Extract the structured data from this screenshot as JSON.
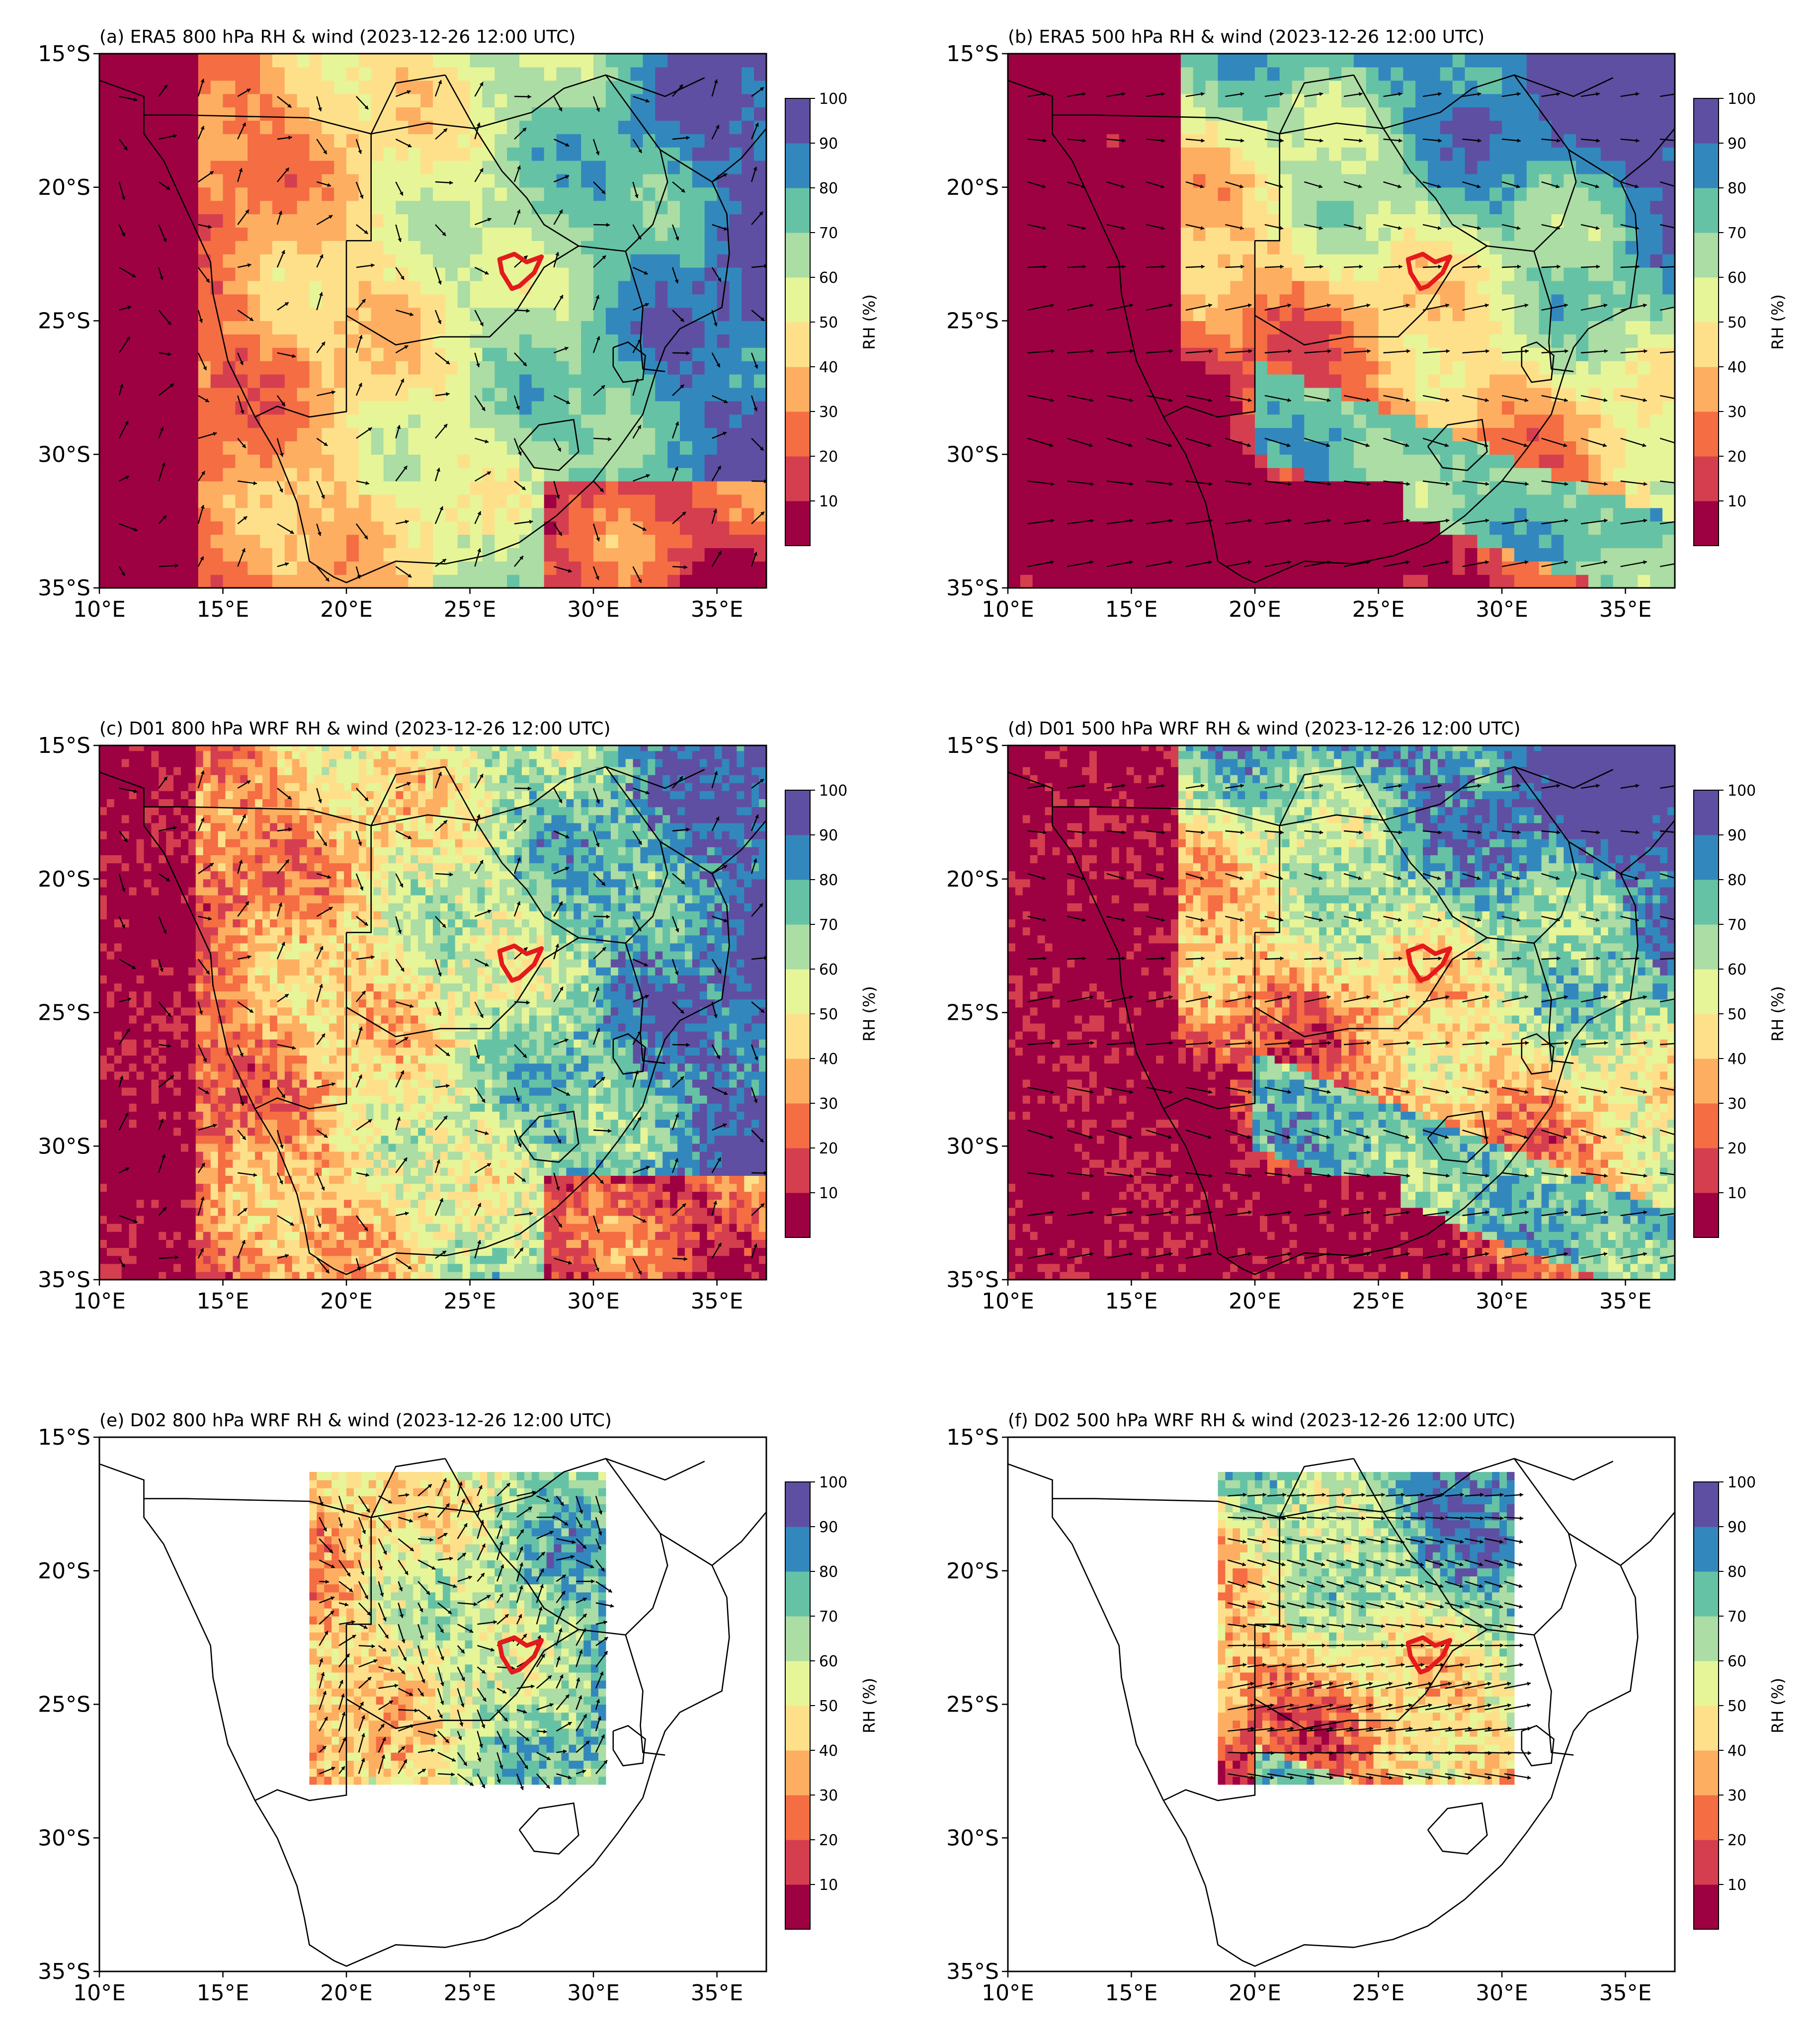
{
  "figure": {
    "colormap": [
      "#9e0142",
      "#d53e4f",
      "#f46d43",
      "#fdae61",
      "#fee08b",
      "#e6f598",
      "#abdda4",
      "#66c2a5",
      "#3288bd",
      "#5e4fa2"
    ],
    "country_outline_color": "#000000",
    "study_area_color": "#e41a1c"
  },
  "chart_data": [
    {
      "id": "a",
      "type": "heatmap",
      "title": "(a) ERA5 800 hPa RH & wind (2023-12-26 12:00 UTC)",
      "dataset": "ERA5",
      "level": "800 hPa",
      "x_ticks": [
        "10°E",
        "15°E",
        "20°E",
        "25°E",
        "30°E",
        "35°E"
      ],
      "y_ticks": [
        "15°S",
        "20°S",
        "25°S",
        "30°S",
        "35°S"
      ],
      "xlim": [
        10,
        37
      ],
      "ylim": [
        -35,
        -15
      ],
      "colorbar": {
        "label": "RH (%)",
        "ticks": [
          "100",
          "90",
          "80",
          "70",
          "60",
          "50",
          "40",
          "30",
          "20",
          "10"
        ],
        "range": [
          10,
          100
        ],
        "levels": 10
      },
      "grid": false
    },
    {
      "id": "b",
      "type": "heatmap",
      "title": "(b) ERA5 500 hPa RH & wind (2023-12-26 12:00 UTC)",
      "dataset": "ERA5",
      "level": "500 hPa",
      "x_ticks": [
        "10°E",
        "15°E",
        "20°E",
        "25°E",
        "30°E",
        "35°E"
      ],
      "y_ticks": [
        "15°S",
        "20°S",
        "25°S",
        "30°S",
        "35°S"
      ],
      "xlim": [
        10,
        37
      ],
      "ylim": [
        -35,
        -15
      ],
      "colorbar": {
        "label": "RH (%)",
        "ticks": [
          "100",
          "90",
          "80",
          "70",
          "60",
          "50",
          "40",
          "30",
          "20",
          "10"
        ],
        "range": [
          10,
          100
        ],
        "levels": 10
      },
      "grid": false
    },
    {
      "id": "c",
      "type": "heatmap",
      "title": "(c) D01 800 hPa WRF RH & wind (2023-12-26 12:00 UTC)",
      "dataset": "D01 WRF",
      "level": "800 hPa",
      "x_ticks": [
        "10°E",
        "15°E",
        "20°E",
        "25°E",
        "30°E",
        "35°E"
      ],
      "y_ticks": [
        "15°S",
        "20°S",
        "25°S",
        "30°S",
        "35°S"
      ],
      "xlim": [
        10,
        37
      ],
      "ylim": [
        -35,
        -15
      ],
      "colorbar": {
        "label": "RH (%)",
        "ticks": [
          "100",
          "90",
          "80",
          "70",
          "60",
          "50",
          "40",
          "30",
          "20",
          "10"
        ],
        "range": [
          10,
          100
        ],
        "levels": 10
      },
      "grid": false
    },
    {
      "id": "d",
      "type": "heatmap",
      "title": "(d) D01 500 hPa WRF RH & wind (2023-12-26 12:00 UTC)",
      "dataset": "D01 WRF",
      "level": "500 hPa",
      "x_ticks": [
        "10°E",
        "15°E",
        "20°E",
        "25°E",
        "30°E",
        "35°E"
      ],
      "y_ticks": [
        "15°S",
        "20°S",
        "25°S",
        "30°S",
        "35°S"
      ],
      "xlim": [
        10,
        37
      ],
      "ylim": [
        -35,
        -15
      ],
      "colorbar": {
        "label": "RH (%)",
        "ticks": [
          "100",
          "90",
          "80",
          "70",
          "60",
          "50",
          "40",
          "30",
          "20",
          "10"
        ],
        "range": [
          10,
          100
        ],
        "levels": 10
      },
      "grid": false
    },
    {
      "id": "e",
      "type": "heatmap",
      "title": "(e) D02 800 hPa WRF RH & wind (2023-12-26 12:00 UTC)",
      "dataset": "D02 WRF",
      "level": "800 hPa",
      "x_ticks": [
        "10°E",
        "15°E",
        "20°E",
        "25°E",
        "30°E",
        "35°E"
      ],
      "y_ticks": [
        "15°S",
        "20°S",
        "25°S",
        "30°S",
        "35°S"
      ],
      "xlim": [
        10,
        37
      ],
      "ylim": [
        -35,
        -15
      ],
      "data_extent_lon": [
        18.5,
        30.5
      ],
      "data_extent_lat": [
        -28.0,
        -16.5
      ],
      "colorbar": {
        "label": "RH (%)",
        "ticks": [
          "100",
          "90",
          "80",
          "70",
          "60",
          "50",
          "40",
          "30",
          "20",
          "10"
        ],
        "range": [
          10,
          100
        ],
        "levels": 10
      },
      "grid": false
    },
    {
      "id": "f",
      "type": "heatmap",
      "title": "(f) D02 500 hPa WRF RH & wind (2023-12-26 12:00 UTC)",
      "dataset": "D02 WRF",
      "level": "500 hPa",
      "x_ticks": [
        "10°E",
        "15°E",
        "20°E",
        "25°E",
        "30°E",
        "35°E"
      ],
      "y_ticks": [
        "15°S",
        "20°S",
        "25°S",
        "30°S",
        "35°S"
      ],
      "xlim": [
        10,
        37
      ],
      "ylim": [
        -35,
        -15
      ],
      "data_extent_lon": [
        18.5,
        30.5
      ],
      "data_extent_lat": [
        -28.0,
        -16.5
      ],
      "colorbar": {
        "label": "RH (%)",
        "ticks": [
          "100",
          "90",
          "80",
          "70",
          "60",
          "50",
          "40",
          "30",
          "20",
          "10"
        ],
        "range": [
          10,
          100
        ],
        "levels": 10
      },
      "grid": false
    }
  ]
}
